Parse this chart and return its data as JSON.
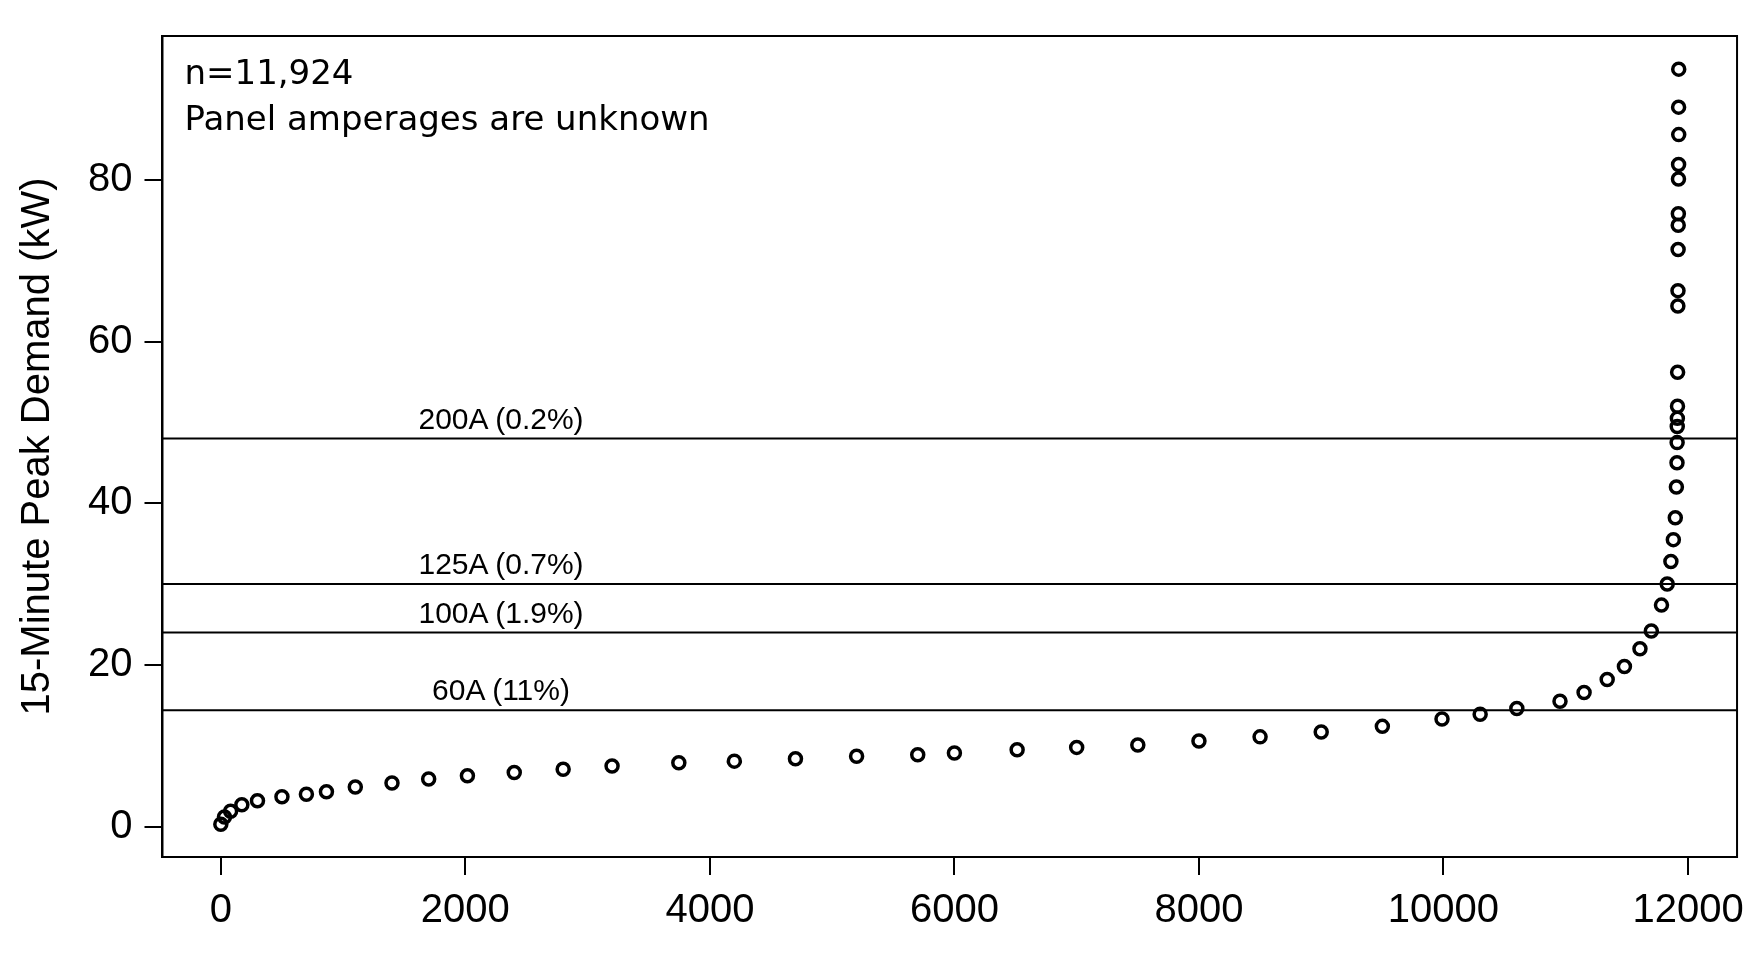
{
  "chart_data": {
    "type": "scatter",
    "ylabel": "15-Minute Peak Demand (kW)",
    "annotations": [
      "n=11,924",
      "Panel amperages are unknown"
    ],
    "series": [
      {
        "color": "#000000",
        "x": [
          0,
          30,
          80,
          172,
          300,
          500,
          700,
          864,
          1100,
          1400,
          1700,
          2017,
          2400,
          2800,
          3200,
          3746,
          4200,
          4700,
          5200,
          5700,
          6000,
          6513,
          7000,
          7500,
          8000,
          8500,
          9000,
          9500,
          9988,
          10300,
          10600,
          10953,
          11150,
          11339,
          11480,
          11607,
          11700,
          11783,
          11830,
          11860,
          11880,
          11896,
          11905,
          11910,
          11911,
          11912,
          11913,
          11914,
          11915,
          11917,
          11918,
          11919,
          11920,
          11921,
          11922,
          11923,
          11924
        ],
        "values": [
          0.3,
          1.2,
          1.9,
          2.7,
          3.2,
          3.7,
          4.0,
          4.3,
          4.9,
          5.4,
          5.9,
          6.3,
          6.7,
          7.1,
          7.5,
          7.9,
          8.1,
          8.4,
          8.7,
          8.9,
          9.1,
          9.5,
          9.8,
          10.1,
          10.6,
          11.1,
          11.7,
          12.4,
          13.3,
          13.9,
          14.6,
          15.5,
          16.6,
          18.2,
          19.8,
          22.0,
          24.2,
          27.4,
          30.0,
          32.8,
          35.5,
          38.2,
          42.0,
          45.0,
          47.5,
          49.5,
          50.5,
          52.0,
          56.2,
          64.4,
          66.3,
          71.4,
          74.4,
          75.8,
          80.1,
          81.9,
          85.6
        ]
      },
      {
        "color": "#000000",
        "x": [
          11923,
          11924
        ],
        "values": [
          89.0,
          93.7
        ]
      }
    ],
    "marker": "circle",
    "xlim": [
      -477,
      12401
    ],
    "ylim": [
      -3.76,
      97.8
    ],
    "xticks": [
      0,
      2000,
      4000,
      6000,
      8000,
      10000,
      12000
    ],
    "yticks": [
      0,
      20,
      40,
      60,
      80
    ],
    "ref_lines": [
      {
        "axis": "y",
        "value": 48,
        "label": "200A (0.2%)",
        "color": "#000000"
      },
      {
        "axis": "y",
        "value": 30,
        "label": "125A (0.7%)",
        "color": "#000000"
      },
      {
        "axis": "y",
        "value": 24,
        "label": "100A (1.9%)",
        "color": "#000000"
      },
      {
        "axis": "y",
        "value": 14.4,
        "label": "60A (11%)",
        "color": "#000000"
      }
    ],
    "grid": false,
    "legend": false
  }
}
